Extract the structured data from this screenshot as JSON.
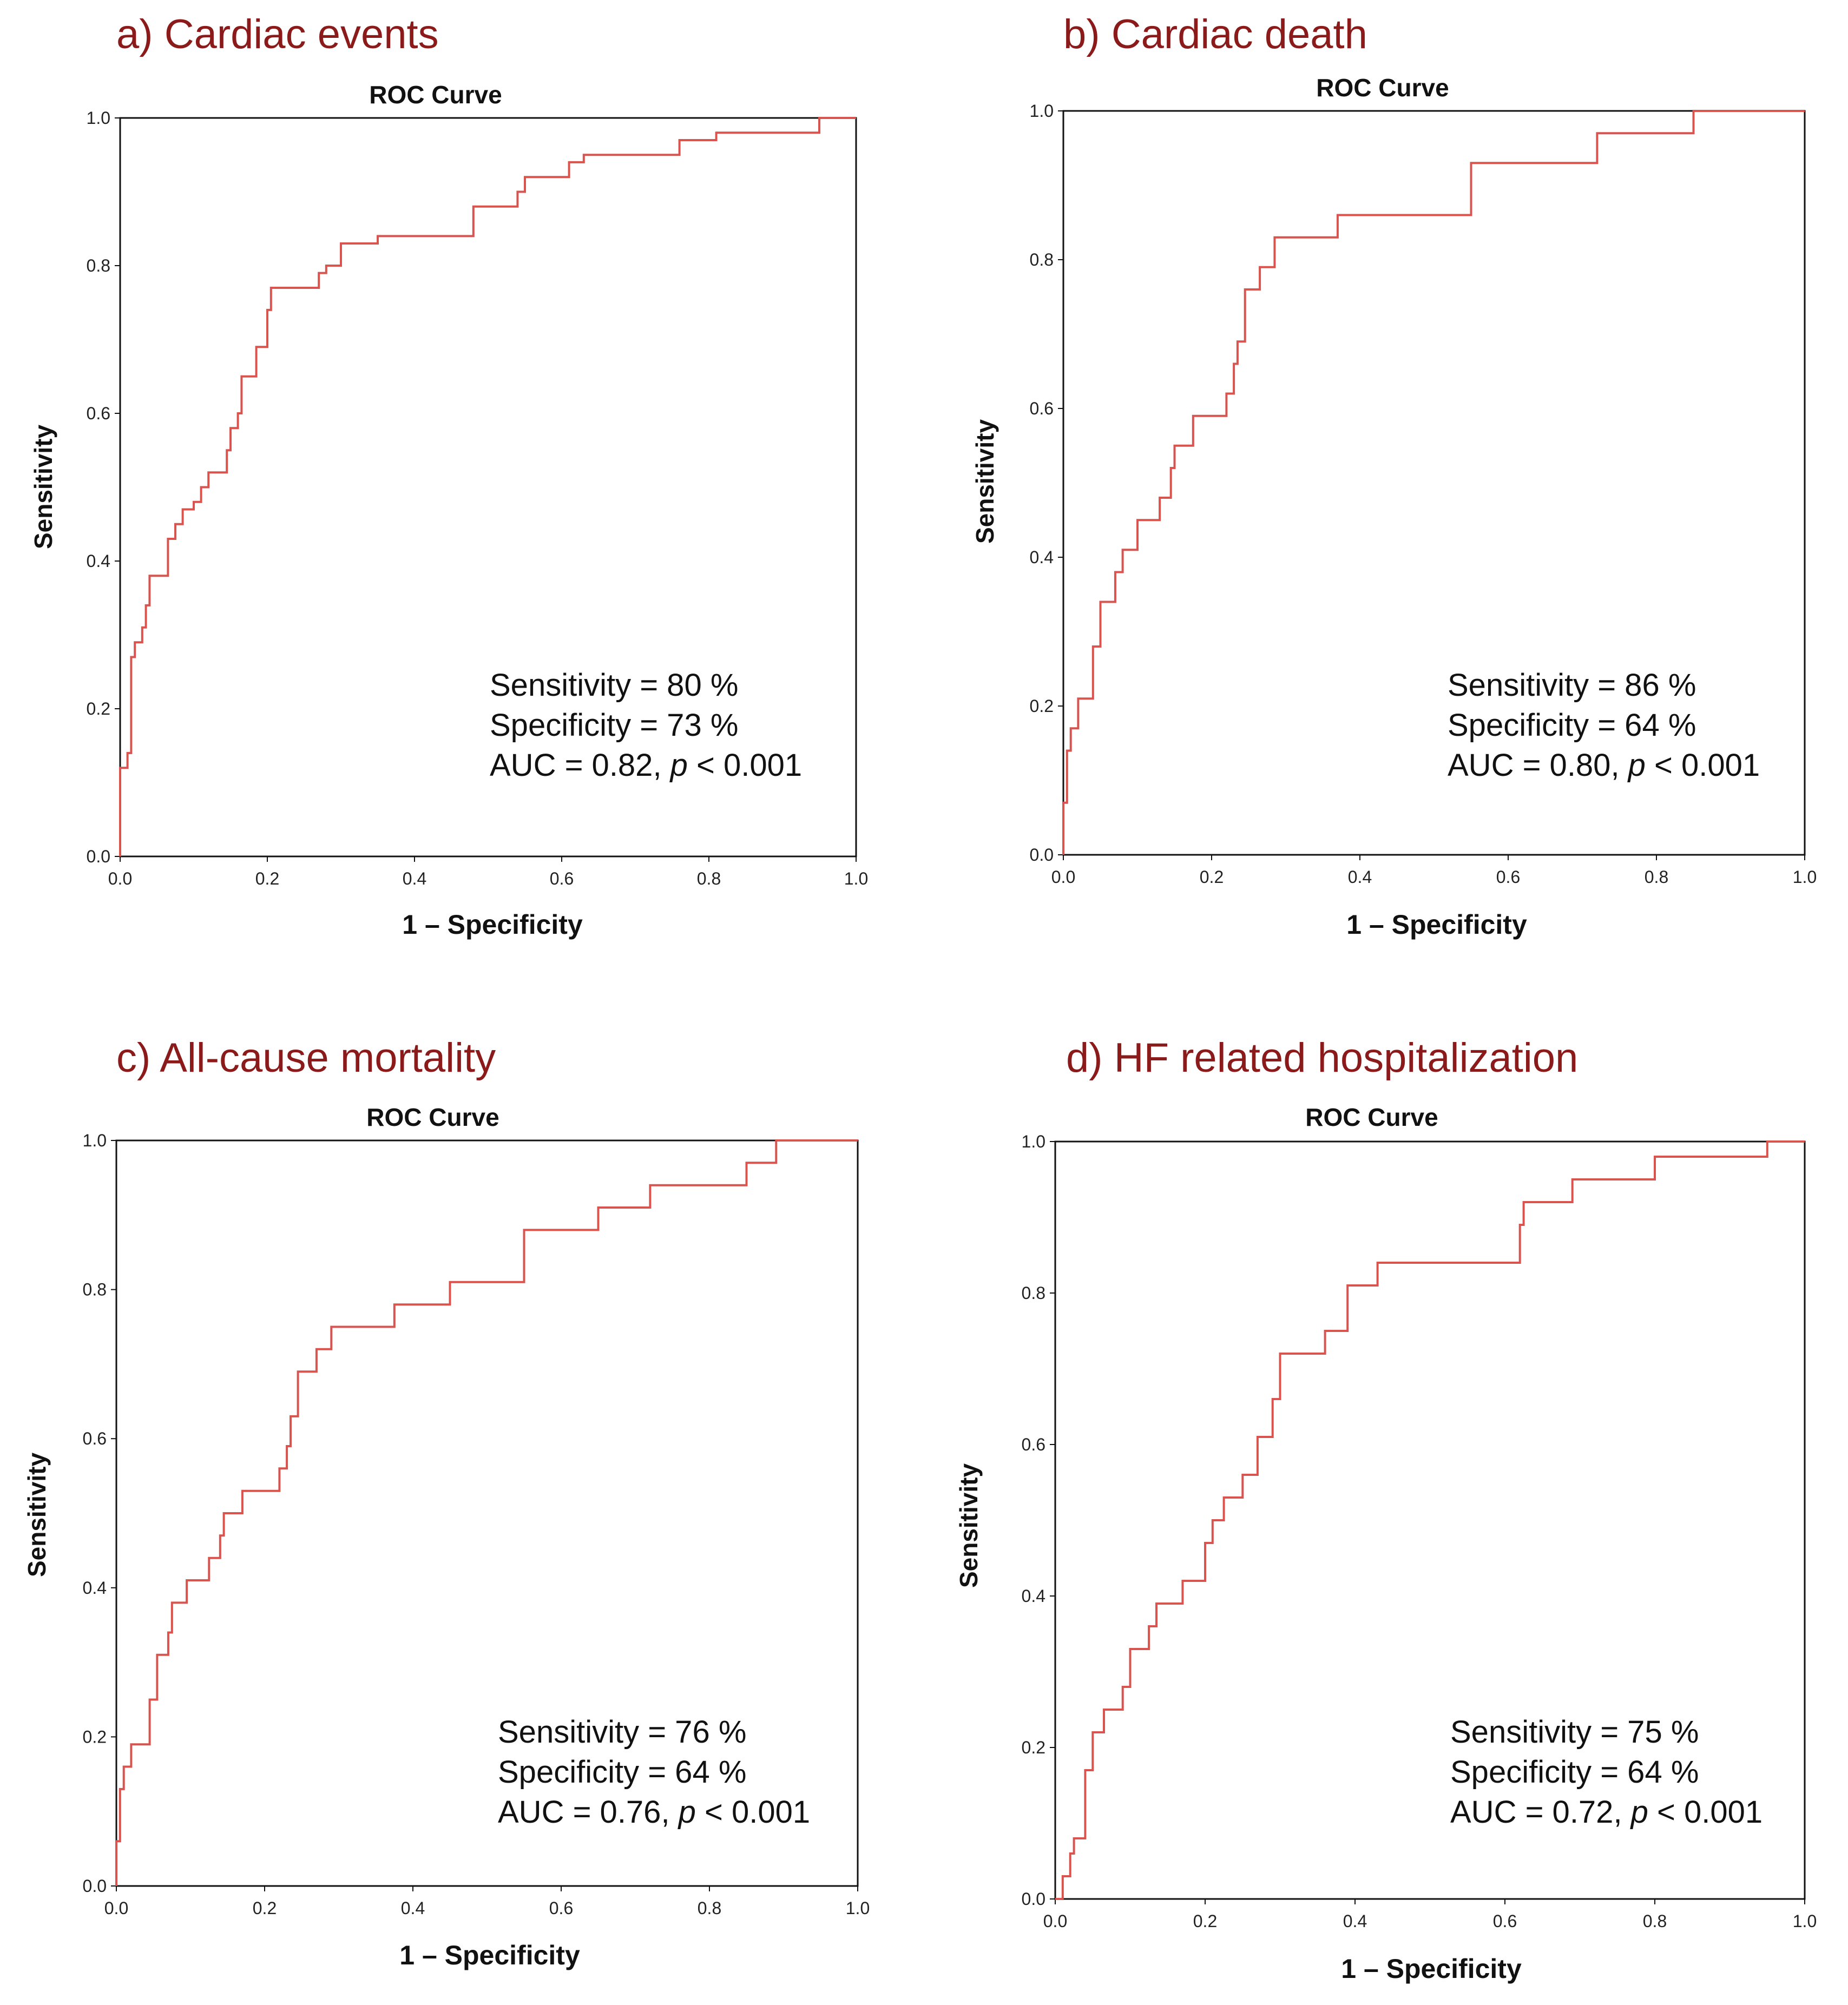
{
  "colors": {
    "panel_title": "#8b1a1a",
    "curve": "#d9534f",
    "frame": "#111111"
  },
  "chart_data": [
    {
      "panel_label": "a) Cardiac events",
      "type": "line",
      "title": "ROC Curve",
      "xlabel": "1 – Specificity",
      "ylabel": "Sensitivity",
      "xlim": [
        0,
        1
      ],
      "ylim": [
        0,
        1
      ],
      "xticks": [
        "0.0",
        "0.2",
        "0.4",
        "0.6",
        "0.8",
        "1.0"
      ],
      "yticks": [
        "0.0",
        "0.2",
        "0.4",
        "0.6",
        "0.8",
        "1.0"
      ],
      "grid": false,
      "stats": {
        "sensitivity": "Sensitivity = 80 %",
        "specificity": "Specificity = 73 %",
        "auc_prefix": "AUC = 0.82, ",
        "p_symbol": "p",
        "p_value": " < 0.001"
      },
      "series": [
        {
          "points": [
            [
              0,
              0
            ],
            [
              0,
              0.12
            ],
            [
              0.01,
              0.12
            ],
            [
              0.01,
              0.14
            ],
            [
              0.015,
              0.14
            ],
            [
              0.015,
              0.27
            ],
            [
              0.02,
              0.27
            ],
            [
              0.02,
              0.29
            ],
            [
              0.03,
              0.29
            ],
            [
              0.03,
              0.31
            ],
            [
              0.035,
              0.31
            ],
            [
              0.035,
              0.34
            ],
            [
              0.04,
              0.34
            ],
            [
              0.04,
              0.38
            ],
            [
              0.065,
              0.38
            ],
            [
              0.065,
              0.43
            ],
            [
              0.075,
              0.43
            ],
            [
              0.075,
              0.45
            ],
            [
              0.085,
              0.45
            ],
            [
              0.085,
              0.47
            ],
            [
              0.1,
              0.47
            ],
            [
              0.1,
              0.48
            ],
            [
              0.11,
              0.48
            ],
            [
              0.11,
              0.5
            ],
            [
              0.12,
              0.5
            ],
            [
              0.12,
              0.52
            ],
            [
              0.145,
              0.52
            ],
            [
              0.145,
              0.55
            ],
            [
              0.15,
              0.55
            ],
            [
              0.15,
              0.58
            ],
            [
              0.16,
              0.58
            ],
            [
              0.16,
              0.6
            ],
            [
              0.165,
              0.6
            ],
            [
              0.165,
              0.65
            ],
            [
              0.185,
              0.65
            ],
            [
              0.185,
              0.69
            ],
            [
              0.2,
              0.69
            ],
            [
              0.2,
              0.74
            ],
            [
              0.205,
              0.74
            ],
            [
              0.205,
              0.77
            ],
            [
              0.27,
              0.77
            ],
            [
              0.27,
              0.79
            ],
            [
              0.28,
              0.79
            ],
            [
              0.28,
              0.8
            ],
            [
              0.3,
              0.8
            ],
            [
              0.3,
              0.83
            ],
            [
              0.35,
              0.83
            ],
            [
              0.35,
              0.84
            ],
            [
              0.48,
              0.84
            ],
            [
              0.48,
              0.88
            ],
            [
              0.54,
              0.88
            ],
            [
              0.54,
              0.9
            ],
            [
              0.55,
              0.9
            ],
            [
              0.55,
              0.92
            ],
            [
              0.61,
              0.92
            ],
            [
              0.61,
              0.94
            ],
            [
              0.63,
              0.94
            ],
            [
              0.63,
              0.95
            ],
            [
              0.76,
              0.95
            ],
            [
              0.76,
              0.97
            ],
            [
              0.81,
              0.97
            ],
            [
              0.81,
              0.98
            ],
            [
              0.95,
              0.98
            ],
            [
              0.95,
              1
            ],
            [
              1,
              1
            ]
          ]
        }
      ]
    },
    {
      "panel_label": "b) Cardiac death",
      "type": "line",
      "title": "ROC Curve",
      "xlabel": "1 – Specificity",
      "ylabel": "Sensitivity",
      "xlim": [
        0,
        1
      ],
      "ylim": [
        0,
        1
      ],
      "xticks": [
        "0.0",
        "0.2",
        "0.4",
        "0.6",
        "0.8",
        "1.0"
      ],
      "yticks": [
        "0.0",
        "0.2",
        "0.4",
        "0.6",
        "0.8",
        "1.0"
      ],
      "grid": false,
      "stats": {
        "sensitivity": "Sensitivity = 86 %",
        "specificity": "Specificity = 64 %",
        "auc_prefix": "AUC = 0.80, ",
        "p_symbol": "p",
        "p_value": " < 0.001"
      },
      "series": [
        {
          "points": [
            [
              0,
              0
            ],
            [
              0,
              0.07
            ],
            [
              0.005,
              0.07
            ],
            [
              0.005,
              0.14
            ],
            [
              0.01,
              0.14
            ],
            [
              0.01,
              0.17
            ],
            [
              0.02,
              0.17
            ],
            [
              0.02,
              0.21
            ],
            [
              0.04,
              0.21
            ],
            [
              0.04,
              0.28
            ],
            [
              0.05,
              0.28
            ],
            [
              0.05,
              0.34
            ],
            [
              0.07,
              0.34
            ],
            [
              0.07,
              0.38
            ],
            [
              0.08,
              0.38
            ],
            [
              0.08,
              0.41
            ],
            [
              0.1,
              0.41
            ],
            [
              0.1,
              0.45
            ],
            [
              0.13,
              0.45
            ],
            [
              0.13,
              0.48
            ],
            [
              0.145,
              0.48
            ],
            [
              0.145,
              0.52
            ],
            [
              0.15,
              0.52
            ],
            [
              0.15,
              0.55
            ],
            [
              0.175,
              0.55
            ],
            [
              0.175,
              0.59
            ],
            [
              0.22,
              0.59
            ],
            [
              0.22,
              0.62
            ],
            [
              0.23,
              0.62
            ],
            [
              0.23,
              0.66
            ],
            [
              0.235,
              0.66
            ],
            [
              0.235,
              0.69
            ],
            [
              0.245,
              0.69
            ],
            [
              0.245,
              0.76
            ],
            [
              0.265,
              0.76
            ],
            [
              0.265,
              0.79
            ],
            [
              0.285,
              0.79
            ],
            [
              0.285,
              0.83
            ],
            [
              0.37,
              0.83
            ],
            [
              0.37,
              0.86
            ],
            [
              0.55,
              0.86
            ],
            [
              0.55,
              0.93
            ],
            [
              0.72,
              0.93
            ],
            [
              0.72,
              0.97
            ],
            [
              0.85,
              0.97
            ],
            [
              0.85,
              1
            ],
            [
              1,
              1
            ]
          ]
        }
      ]
    },
    {
      "panel_label": "c) All-cause mortality",
      "type": "line",
      "title": "ROC Curve",
      "xlabel": "1 – Specificity",
      "ylabel": "Sensitivity",
      "xlim": [
        0,
        1
      ],
      "ylim": [
        0,
        1
      ],
      "xticks": [
        "0.0",
        "0.2",
        "0.4",
        "0.6",
        "0.8",
        "1.0"
      ],
      "yticks": [
        "0.0",
        "0.2",
        "0.4",
        "0.6",
        "0.8",
        "1.0"
      ],
      "grid": false,
      "stats": {
        "sensitivity": "Sensitivity = 76 %",
        "specificity": "Specificity = 64 %",
        "auc_prefix": "AUC = 0.76, ",
        "p_symbol": "p",
        "p_value": " < 0.001"
      },
      "series": [
        {
          "points": [
            [
              0,
              0
            ],
            [
              0,
              0.06
            ],
            [
              0.005,
              0.06
            ],
            [
              0.005,
              0.13
            ],
            [
              0.01,
              0.13
            ],
            [
              0.01,
              0.16
            ],
            [
              0.02,
              0.16
            ],
            [
              0.02,
              0.19
            ],
            [
              0.045,
              0.19
            ],
            [
              0.045,
              0.25
            ],
            [
              0.055,
              0.25
            ],
            [
              0.055,
              0.31
            ],
            [
              0.07,
              0.31
            ],
            [
              0.07,
              0.34
            ],
            [
              0.075,
              0.34
            ],
            [
              0.075,
              0.38
            ],
            [
              0.095,
              0.38
            ],
            [
              0.095,
              0.41
            ],
            [
              0.125,
              0.41
            ],
            [
              0.125,
              0.44
            ],
            [
              0.14,
              0.44
            ],
            [
              0.14,
              0.47
            ],
            [
              0.145,
              0.47
            ],
            [
              0.145,
              0.5
            ],
            [
              0.17,
              0.5
            ],
            [
              0.17,
              0.53
            ],
            [
              0.22,
              0.53
            ],
            [
              0.22,
              0.56
            ],
            [
              0.23,
              0.56
            ],
            [
              0.23,
              0.59
            ],
            [
              0.235,
              0.59
            ],
            [
              0.235,
              0.63
            ],
            [
              0.245,
              0.63
            ],
            [
              0.245,
              0.69
            ],
            [
              0.27,
              0.69
            ],
            [
              0.27,
              0.72
            ],
            [
              0.29,
              0.72
            ],
            [
              0.29,
              0.75
            ],
            [
              0.375,
              0.75
            ],
            [
              0.375,
              0.78
            ],
            [
              0.45,
              0.78
            ],
            [
              0.45,
              0.81
            ],
            [
              0.55,
              0.81
            ],
            [
              0.55,
              0.88
            ],
            [
              0.65,
              0.88
            ],
            [
              0.65,
              0.91
            ],
            [
              0.72,
              0.91
            ],
            [
              0.72,
              0.94
            ],
            [
              0.85,
              0.94
            ],
            [
              0.85,
              0.97
            ],
            [
              0.89,
              0.97
            ],
            [
              0.89,
              1
            ],
            [
              1,
              1
            ]
          ]
        }
      ]
    },
    {
      "panel_label": "d) HF related hospitalization",
      "type": "line",
      "title": "ROC Curve",
      "xlabel": "1 – Specificity",
      "ylabel": "Sensitivity",
      "xlim": [
        0,
        1
      ],
      "ylim": [
        0,
        1
      ],
      "xticks": [
        "0.0",
        "0.2",
        "0.4",
        "0.6",
        "0.8",
        "1.0"
      ],
      "yticks": [
        "0.0",
        "0.2",
        "0.4",
        "0.6",
        "0.8",
        "1.0"
      ],
      "grid": false,
      "stats": {
        "sensitivity": "Sensitivity = 75 %",
        "specificity": "Specificity = 64 %",
        "auc_prefix": "AUC = 0.72, ",
        "p_symbol": "p",
        "p_value": " < 0.001"
      },
      "series": [
        {
          "points": [
            [
              0,
              0
            ],
            [
              0.01,
              0
            ],
            [
              0.01,
              0.03
            ],
            [
              0.02,
              0.03
            ],
            [
              0.02,
              0.06
            ],
            [
              0.025,
              0.06
            ],
            [
              0.025,
              0.08
            ],
            [
              0.04,
              0.08
            ],
            [
              0.04,
              0.17
            ],
            [
              0.05,
              0.17
            ],
            [
              0.05,
              0.22
            ],
            [
              0.065,
              0.22
            ],
            [
              0.065,
              0.25
            ],
            [
              0.09,
              0.25
            ],
            [
              0.09,
              0.28
            ],
            [
              0.1,
              0.28
            ],
            [
              0.1,
              0.33
            ],
            [
              0.125,
              0.33
            ],
            [
              0.125,
              0.36
            ],
            [
              0.135,
              0.36
            ],
            [
              0.135,
              0.39
            ],
            [
              0.17,
              0.39
            ],
            [
              0.17,
              0.42
            ],
            [
              0.2,
              0.42
            ],
            [
              0.2,
              0.47
            ],
            [
              0.21,
              0.47
            ],
            [
              0.21,
              0.5
            ],
            [
              0.225,
              0.5
            ],
            [
              0.225,
              0.53
            ],
            [
              0.25,
              0.53
            ],
            [
              0.25,
              0.56
            ],
            [
              0.27,
              0.56
            ],
            [
              0.27,
              0.61
            ],
            [
              0.29,
              0.61
            ],
            [
              0.29,
              0.66
            ],
            [
              0.3,
              0.66
            ],
            [
              0.3,
              0.72
            ],
            [
              0.36,
              0.72
            ],
            [
              0.36,
              0.75
            ],
            [
              0.39,
              0.75
            ],
            [
              0.39,
              0.81
            ],
            [
              0.43,
              0.81
            ],
            [
              0.43,
              0.84
            ],
            [
              0.62,
              0.84
            ],
            [
              0.62,
              0.89
            ],
            [
              0.625,
              0.89
            ],
            [
              0.625,
              0.92
            ],
            [
              0.69,
              0.92
            ],
            [
              0.69,
              0.95
            ],
            [
              0.8,
              0.95
            ],
            [
              0.8,
              0.98
            ],
            [
              0.95,
              0.98
            ],
            [
              0.95,
              1
            ],
            [
              1,
              1
            ]
          ]
        }
      ]
    }
  ]
}
